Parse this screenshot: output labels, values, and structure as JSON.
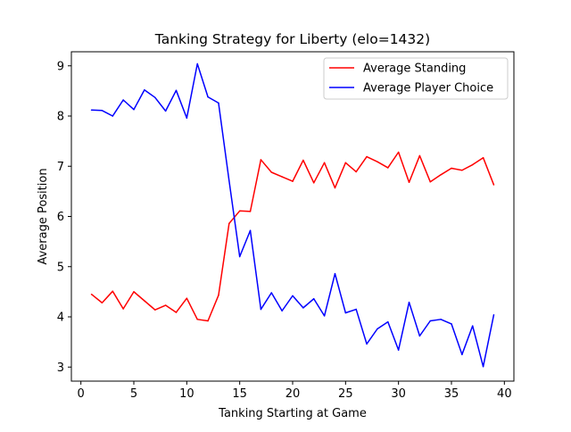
{
  "chart_data": {
    "type": "line",
    "title": "Tanking Strategy for Liberty (elo=1432)",
    "xlabel": "Tanking Starting at Game",
    "ylabel": "Average Position",
    "xlim": [
      -0.9,
      40.9
    ],
    "ylim": [
      2.72,
      9.28
    ],
    "xticks": [
      0,
      5,
      10,
      15,
      20,
      25,
      30,
      35,
      40
    ],
    "yticks": [
      3,
      4,
      5,
      6,
      7,
      8,
      9
    ],
    "grid": false,
    "legend": "top-right",
    "x": [
      1,
      2,
      3,
      4,
      5,
      6,
      7,
      8,
      9,
      10,
      11,
      12,
      13,
      14,
      15,
      16,
      17,
      18,
      19,
      20,
      21,
      22,
      23,
      24,
      25,
      26,
      27,
      28,
      29,
      30,
      31,
      32,
      33,
      34,
      35,
      36,
      37,
      38,
      39
    ],
    "series": [
      {
        "name": "Average Standing",
        "color": "#ff0000",
        "values": [
          4.45,
          4.28,
          4.51,
          4.16,
          4.5,
          4.32,
          4.14,
          4.23,
          4.09,
          4.37,
          3.95,
          3.92,
          4.43,
          5.86,
          6.11,
          6.1,
          7.13,
          6.88,
          6.79,
          6.7,
          7.12,
          6.67,
          7.07,
          6.57,
          7.07,
          6.89,
          7.19,
          7.09,
          6.97,
          7.28,
          6.68,
          7.21,
          6.69,
          6.83,
          6.96,
          6.92,
          7.03,
          7.17,
          6.63
        ]
      },
      {
        "name": "Average Player Choice",
        "color": "#0000ff",
        "values": [
          8.12,
          8.11,
          8.0,
          8.32,
          8.13,
          8.52,
          8.37,
          8.1,
          8.51,
          7.96,
          9.04,
          8.38,
          8.26,
          6.71,
          5.2,
          5.72,
          4.15,
          4.48,
          4.12,
          4.42,
          4.18,
          4.36,
          4.02,
          4.86,
          4.08,
          4.15,
          3.46,
          3.76,
          3.9,
          3.34,
          4.29,
          3.62,
          3.92,
          3.95,
          3.86,
          3.25,
          3.82,
          3.01,
          4.04
        ]
      }
    ]
  }
}
